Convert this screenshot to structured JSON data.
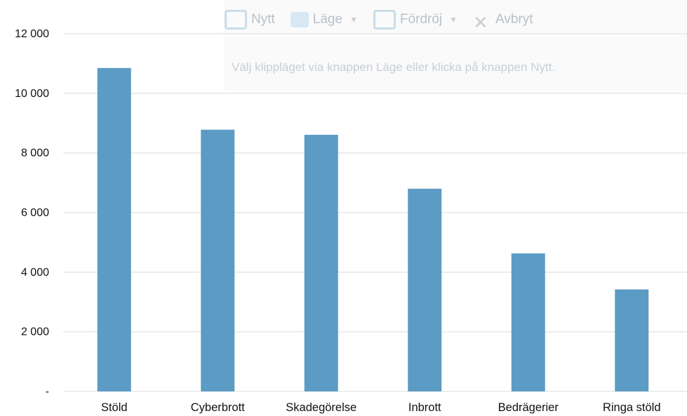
{
  "snip_overlay": {
    "new_label": "Nytt",
    "mode_label": "Läge",
    "delay_label": "Fördröj",
    "cancel_label": "Avbryt",
    "hint": "Välj klippläget via knappen Läge eller klicka på knappen Nytt."
  },
  "chart_data": {
    "type": "bar",
    "title": "",
    "xlabel": "",
    "ylabel": "",
    "categories": [
      "Stöld",
      "Cyberbrott",
      "Skadegörelse",
      "Inbrott",
      "Bedrägerier",
      "Ringa stöld"
    ],
    "values": [
      10850,
      8780,
      8610,
      6800,
      4630,
      3420
    ],
    "ylim": [
      0,
      12000
    ],
    "yticks": [
      0,
      2000,
      4000,
      6000,
      8000,
      10000,
      12000
    ],
    "ytick_labels": [
      "-",
      "2 000",
      "4 000",
      "6 000",
      "8 000",
      "10 000",
      "12 000"
    ],
    "grid": true,
    "legend": "none",
    "colors": {
      "bar": "#5b9bc4",
      "grid": "#e4e4e4",
      "text": "#111111"
    }
  }
}
